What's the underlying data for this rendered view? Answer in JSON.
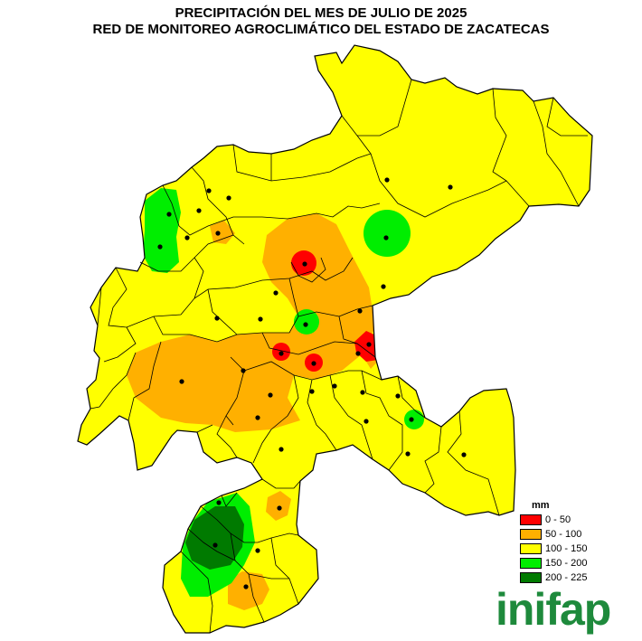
{
  "title_line1": "PRECIPITACIÓN DEL MES DE JULIO DE 2025",
  "title_line2": "RED DE MONITOREO AGROCLIMÁTICO DEL ESTADO DE ZACATECAS",
  "legend": {
    "unit": "mm",
    "items": [
      {
        "label": "0 - 50",
        "color": "#ff0000"
      },
      {
        "label": "50 - 100",
        "color": "#ffb000"
      },
      {
        "label": "100 - 150",
        "color": "#ffff00"
      },
      {
        "label": "150 - 200",
        "color": "#00ee00"
      },
      {
        "label": "200 - 225",
        "color": "#007a00"
      }
    ]
  },
  "logo_text": "inifap",
  "colors": {
    "class_0_50": "#ff0000",
    "class_50_100": "#ffb000",
    "class_100_150": "#ffff00",
    "class_150_200": "#00ee00",
    "class_200_225": "#007a00",
    "logo": "#1e8a3c"
  }
}
